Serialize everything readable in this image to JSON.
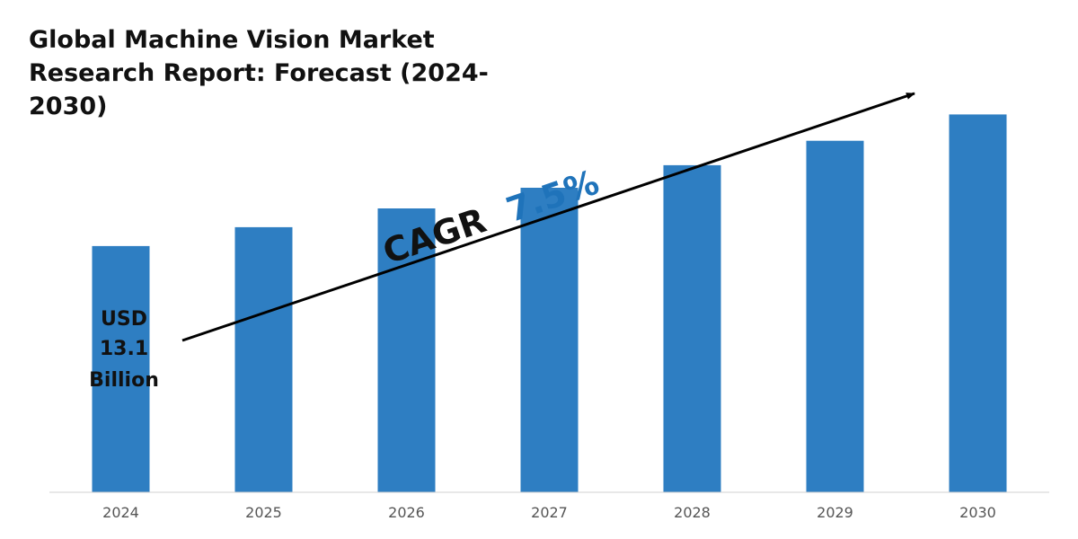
{
  "chart_data": {
    "type": "bar",
    "title": "Global Machine Vision Market Research Report: Forecast (2024-2030)",
    "categories": [
      "2024",
      "2025",
      "2026",
      "2027",
      "2028",
      "2029",
      "2030"
    ],
    "series": [
      {
        "values": [
          13.1,
          14.1,
          15.1,
          16.2,
          17.4,
          18.7,
          20.1
        ]
      }
    ],
    "xlabel": "",
    "ylabel": "",
    "ylim": [
      0,
      21.6
    ],
    "grid": false,
    "legend": "none",
    "bar_color": "#2E7EC2",
    "annotations": {
      "start_value_lines": [
        "USD",
        "13.1",
        "Billion"
      ],
      "cagr_label": "CAGR",
      "cagr_value": "7.5%",
      "cagr_value_color": "#1F73BA"
    }
  }
}
